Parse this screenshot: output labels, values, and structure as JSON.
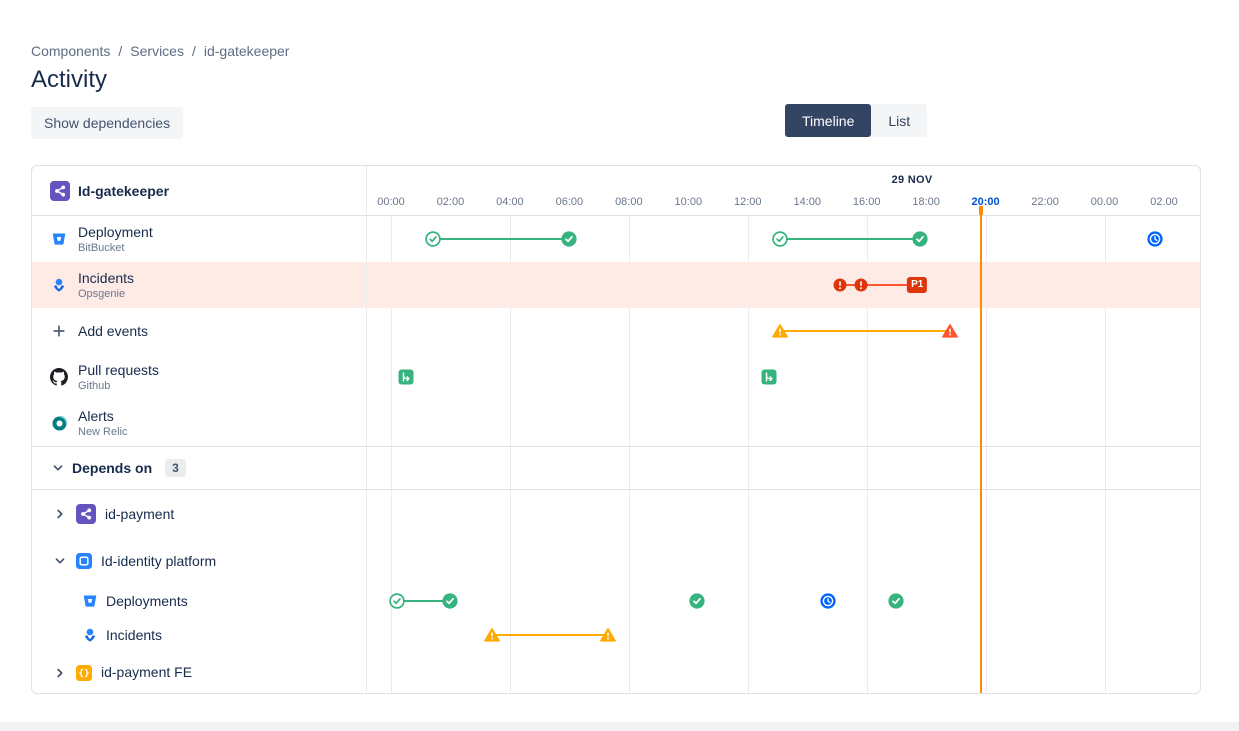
{
  "breadcrumb": {
    "items": [
      "Components",
      "Services",
      "id-gatekeeper"
    ],
    "separator": "/"
  },
  "page": {
    "title": "Activity"
  },
  "toolbar": {
    "show_dependencies_label": "Show dependencies",
    "view_toggle": {
      "timeline_label": "Timeline",
      "list_label": "List",
      "selected": "Timeline"
    }
  },
  "colors": {
    "success_green": "#36B37E",
    "danger_red": "#DE350B",
    "incident_line_red": "#FF5630",
    "warning_yellow": "#FFAB00",
    "info_blue": "#0065FF",
    "now_line_orange": "#FF8B00",
    "incident_row_highlight": "#FFEBE6",
    "current_tick_blue": "#0052CC"
  },
  "timeline": {
    "component_name": "Id-gatekeeper",
    "component_icon": "component-purple-icon",
    "date_label": "29 NOV",
    "ticks": [
      "00:00",
      "02:00",
      "04:00",
      "06:00",
      "08:00",
      "10:00",
      "12:00",
      "14:00",
      "16:00",
      "18:00",
      "20:00",
      "22:00",
      "00.00",
      "02.00"
    ],
    "current_tick": "20:00",
    "now": {
      "hour": 19.8,
      "color": "#FF8B00"
    },
    "rows": [
      {
        "id": "deployment",
        "kind": "source",
        "icon": "bitbucket-icon",
        "label": "Deployment",
        "sublabel": "BitBucket"
      },
      {
        "id": "incidents",
        "kind": "source",
        "icon": "opsgenie-icon",
        "label": "Incidents",
        "sublabel": "Opsgenie",
        "highlight": true
      },
      {
        "id": "add-events",
        "kind": "action",
        "icon": "plus-icon",
        "label": "Add events"
      },
      {
        "id": "pull-requests",
        "kind": "source",
        "icon": "github-icon",
        "label": "Pull requests",
        "sublabel": "Github"
      },
      {
        "id": "alerts",
        "kind": "source",
        "icon": "newrelic-icon",
        "label": "Alerts",
        "sublabel": "New Relic"
      },
      {
        "id": "depends-on",
        "kind": "section",
        "chevron": "down",
        "label": "Depends on",
        "badge": "3"
      },
      {
        "id": "id-payment",
        "kind": "component",
        "chevron": "right",
        "icon": "component-purple-icon",
        "label": "id-payment"
      },
      {
        "id": "id-identity",
        "kind": "component",
        "chevron": "down",
        "icon": "component-blue-icon",
        "label": "Id-identity platform"
      },
      {
        "id": "identity-deployments",
        "kind": "subsource",
        "icon": "bitbucket-icon",
        "label": "Deployments"
      },
      {
        "id": "identity-incidents",
        "kind": "subsource",
        "icon": "opsgenie-icon",
        "label": "Incidents"
      },
      {
        "id": "id-payment-fe",
        "kind": "component",
        "chevron": "right",
        "icon": "component-orange-icon",
        "label": "id-payment FE"
      }
    ],
    "events": [
      {
        "row": "deployment",
        "line": {
          "from": 1.4,
          "to": 6.0,
          "color": "#36B37E"
        },
        "markers": [
          {
            "at": 1.4,
            "icon": "check-circle-outline-icon"
          },
          {
            "at": 6.0,
            "icon": "check-circle-solid-icon"
          }
        ]
      },
      {
        "row": "deployment",
        "line": {
          "from": 13.1,
          "to": 17.8,
          "color": "#36B37E"
        },
        "markers": [
          {
            "at": 13.1,
            "icon": "check-circle-outline-icon"
          },
          {
            "at": 17.8,
            "icon": "check-circle-solid-icon"
          }
        ]
      },
      {
        "row": "deployment",
        "markers": [
          {
            "at": 25.7,
            "icon": "clock-icon"
          }
        ]
      },
      {
        "row": "incidents",
        "line": {
          "from": 15.1,
          "to": 17.7,
          "color": "#FF5630"
        },
        "markers": [
          {
            "at": 15.1,
            "icon": "incident-exclamation-icon"
          },
          {
            "at": 15.8,
            "icon": "incident-exclamation-icon"
          },
          {
            "at": 17.7,
            "badge": "P1"
          }
        ]
      },
      {
        "row": "add-events",
        "line": {
          "from": 13.1,
          "to": 18.8,
          "color": "#FFAB00"
        },
        "markers": [
          {
            "at": 13.1,
            "icon": "warning-triangle-yellow-icon"
          },
          {
            "at": 18.8,
            "icon": "warning-triangle-red-icon"
          }
        ]
      },
      {
        "row": "pull-requests",
        "markers": [
          {
            "at": 0.5,
            "icon": "pull-request-icon"
          }
        ]
      },
      {
        "row": "pull-requests",
        "markers": [
          {
            "at": 12.7,
            "icon": "pull-request-icon"
          }
        ]
      },
      {
        "row": "identity-deployments",
        "line": {
          "from": 0.2,
          "to": 2.0,
          "color": "#36B37E"
        },
        "markers": [
          {
            "at": 0.2,
            "icon": "check-circle-outline-icon"
          },
          {
            "at": 2.0,
            "icon": "check-circle-solid-icon"
          }
        ]
      },
      {
        "row": "identity-deployments",
        "markers": [
          {
            "at": 10.3,
            "icon": "check-circle-solid-icon"
          }
        ]
      },
      {
        "row": "identity-deployments",
        "markers": [
          {
            "at": 14.7,
            "icon": "clock-icon"
          }
        ]
      },
      {
        "row": "identity-deployments",
        "markers": [
          {
            "at": 17.0,
            "icon": "check-circle-solid-icon"
          }
        ]
      },
      {
        "row": "identity-incidents",
        "line": {
          "from": 3.4,
          "to": 7.3,
          "color": "#FFAB00"
        },
        "markers": [
          {
            "at": 3.4,
            "icon": "warning-triangle-yellow-icon"
          },
          {
            "at": 7.3,
            "icon": "warning-triangle-yellow-icon"
          }
        ]
      }
    ]
  }
}
